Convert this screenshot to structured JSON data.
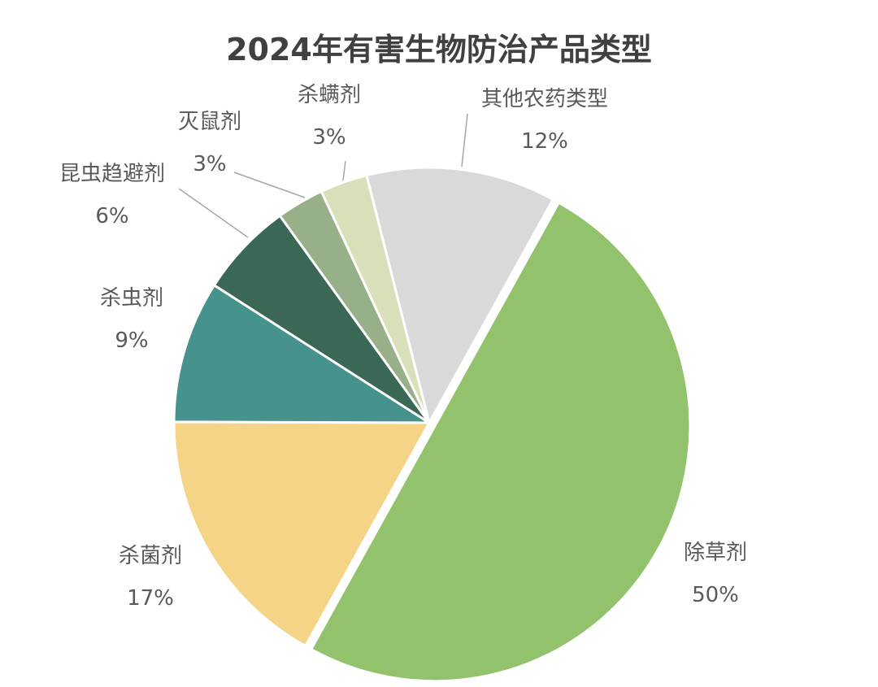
{
  "chart_data": {
    "type": "pie",
    "title": "2024年有害生物防治产品类型",
    "slices": [
      {
        "label": "除草剂",
        "value": 50,
        "value_label": "50%",
        "color": "#92C36C",
        "exploded": true
      },
      {
        "label": "杀菌剂",
        "value": 17,
        "value_label": "17%",
        "color": "#F5D487"
      },
      {
        "label": "杀虫剂",
        "value": 9,
        "value_label": "9%",
        "color": "#45938C"
      },
      {
        "label": "昆虫趋避剂",
        "value": 6,
        "value_label": "6%",
        "color": "#3B6755"
      },
      {
        "label": "灭鼠剂",
        "value": 3,
        "value_label": "3%",
        "color": "#97B08A"
      },
      {
        "label": "杀螨剂",
        "value": 3,
        "value_label": "3%",
        "color": "#D9DFB8"
      },
      {
        "label": "其他农药类型",
        "value": 12,
        "value_label": "12%",
        "color": "#D9D9D9"
      }
    ],
    "legend": "none"
  }
}
